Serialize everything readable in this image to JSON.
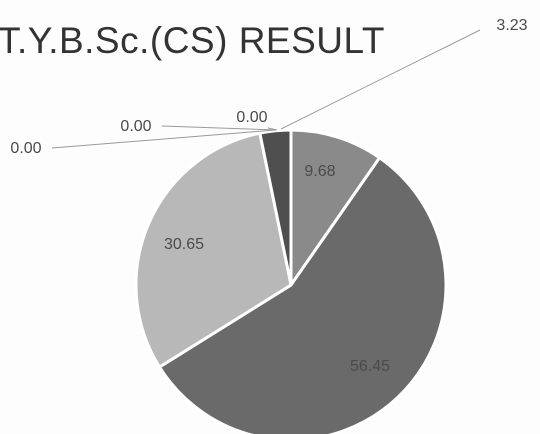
{
  "chart_data": {
    "type": "pie",
    "title": "T.Y.B.Sc.(CS) RESULT",
    "values": [
      3.23,
      9.68,
      56.45,
      30.65,
      0.0,
      0.0,
      0.0
    ],
    "data_labels": [
      "3.23",
      "9.68",
      "56.45",
      "30.65",
      "0.00",
      "0.00",
      "0.00"
    ],
    "colors": [
      "#4f4f4f",
      "#8a8a8a",
      "#6a6a6a",
      "#b8b8b8",
      "#999999",
      "#999999",
      "#999999"
    ],
    "legend": "none"
  }
}
